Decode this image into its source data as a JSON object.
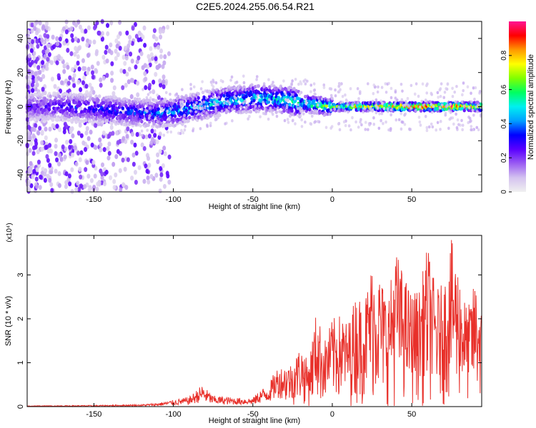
{
  "title": "C2E5.2024.255.06.54.R21",
  "colors": {
    "snr_line": "#e8302a",
    "axis": "#000000",
    "colorbar_stops": [
      "#f0f0f0",
      "#d4c2f0",
      "#9a5cf2",
      "#5a00ff",
      "#0000ff",
      "#00a0ff",
      "#00f0f0",
      "#00ff60",
      "#80ff00",
      "#ffff00",
      "#ff9800",
      "#ff0000",
      "#ff1493"
    ]
  },
  "chart_data": [
    {
      "type": "heatmap",
      "title": "C2E5.2024.255.06.54.R21",
      "xlabel": "Height of straight line (km)",
      "ylabel": "Frequency (Hz)",
      "xlim": [
        -192,
        94
      ],
      "ylim": [
        -50,
        50
      ],
      "x_ticks": [
        -150,
        -100,
        -50,
        0,
        50
      ],
      "y_ticks": [
        -40,
        -20,
        0,
        20,
        40
      ],
      "grid": false,
      "colorbar": {
        "label": "Normalized spectral amplitude",
        "range": [
          0,
          1
        ],
        "ticks": [
          0,
          0.2,
          0.4,
          0.6,
          0.8
        ]
      },
      "ridge": {
        "x": [
          -192,
          -170,
          -150,
          -130,
          -110,
          -100,
          -90,
          -80,
          -70,
          -60,
          -50,
          -40,
          -30,
          -20,
          -10,
          0,
          10,
          20,
          40,
          60,
          80,
          94
        ],
        "center_freq": [
          0,
          0,
          -1,
          -3,
          -4,
          -3,
          -1,
          1,
          3,
          4,
          5,
          5,
          4,
          2,
          1,
          0,
          0,
          0,
          0,
          0,
          0,
          0
        ],
        "peak_amplitude": [
          0.25,
          0.3,
          0.35,
          0.35,
          0.4,
          0.45,
          0.45,
          0.5,
          0.5,
          0.5,
          0.5,
          0.5,
          0.55,
          0.6,
          0.65,
          0.7,
          0.75,
          0.85,
          0.95,
          1.0,
          0.95,
          0.9
        ]
      }
    },
    {
      "type": "line",
      "xlabel": "Height of straight line (km)",
      "ylabel": "SNR (10 * v/v)",
      "y_multiplier": "(x10⁴)",
      "xlim": [
        -192,
        94
      ],
      "ylim": [
        0,
        3.9
      ],
      "x_ticks": [
        -150,
        -100,
        -50,
        0,
        50
      ],
      "y_ticks": [
        0,
        1,
        2,
        3
      ],
      "grid": false,
      "envelope": {
        "x": [
          -192,
          -150,
          -120,
          -110,
          -100,
          -90,
          -82,
          -75,
          -60,
          -50,
          -45,
          -40,
          -35,
          -30,
          -25,
          -20,
          -15,
          -10,
          -5,
          0,
          5,
          10,
          15,
          20,
          25,
          30,
          35,
          40,
          45,
          50,
          55,
          60,
          65,
          70,
          75,
          80,
          85,
          90,
          94
        ],
        "y": [
          0.02,
          0.03,
          0.05,
          0.08,
          0.15,
          0.22,
          0.5,
          0.25,
          0.2,
          0.2,
          0.4,
          0.5,
          0.9,
          0.95,
          1.0,
          1.4,
          1.0,
          2.2,
          1.5,
          2.0,
          2.1,
          1.9,
          2.6,
          2.4,
          3.3,
          3.0,
          2.5,
          3.6,
          3.0,
          2.6,
          2.7,
          3.7,
          2.7,
          2.8,
          3.8,
          3.1,
          2.2,
          2.9,
          2.2
        ]
      }
    }
  ]
}
